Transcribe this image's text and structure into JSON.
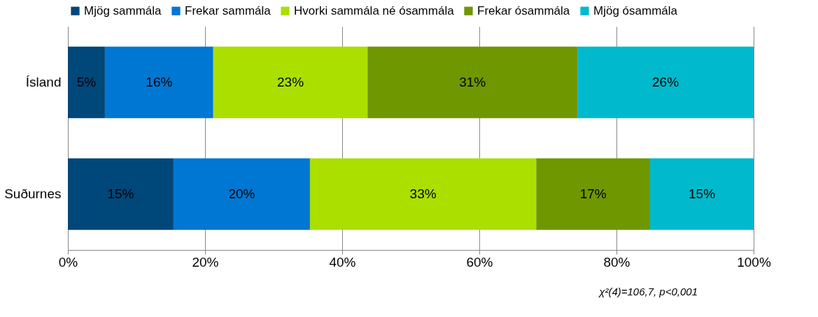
{
  "chart_data": {
    "type": "bar",
    "orientation": "horizontal",
    "stacked": true,
    "categories": [
      "Ísland",
      "Suðurnes"
    ],
    "series": [
      {
        "name": "Mjög sammála",
        "color": "#00477a",
        "values": [
          5.4,
          15.4
        ],
        "value_labels": [
          "5%",
          "15%"
        ]
      },
      {
        "name": "Frekar sammála",
        "color": "#0077d3",
        "values": [
          15.8,
          19.9
        ],
        "value_labels": [
          "16%",
          "20%"
        ]
      },
      {
        "name": "Hvorki sammála né ósammála",
        "color": "#aadf00",
        "values": [
          22.5,
          33.0
        ],
        "value_labels": [
          "23%",
          "33%"
        ]
      },
      {
        "name": "Frekar ósammála",
        "color": "#6f9700",
        "values": [
          30.6,
          16.6
        ],
        "value_labels": [
          "31%",
          "17%"
        ]
      },
      {
        "name": "Mjög ósammála",
        "color": "#00b9cc",
        "values": [
          25.7,
          15.1
        ],
        "value_labels": [
          "26%",
          "15%"
        ]
      }
    ],
    "xlim": [
      0,
      100
    ],
    "xticks": [
      {
        "value": 0,
        "label": "0%"
      },
      {
        "value": 20,
        "label": "20%"
      },
      {
        "value": 40,
        "label": "40%"
      },
      {
        "value": 60,
        "label": "60%"
      },
      {
        "value": 80,
        "label": "80%"
      },
      {
        "value": 100,
        "label": "100%"
      }
    ],
    "grid": "x",
    "legend": "top",
    "annotations": [
      "χ²(4)=106,7,  p<0,001"
    ]
  }
}
